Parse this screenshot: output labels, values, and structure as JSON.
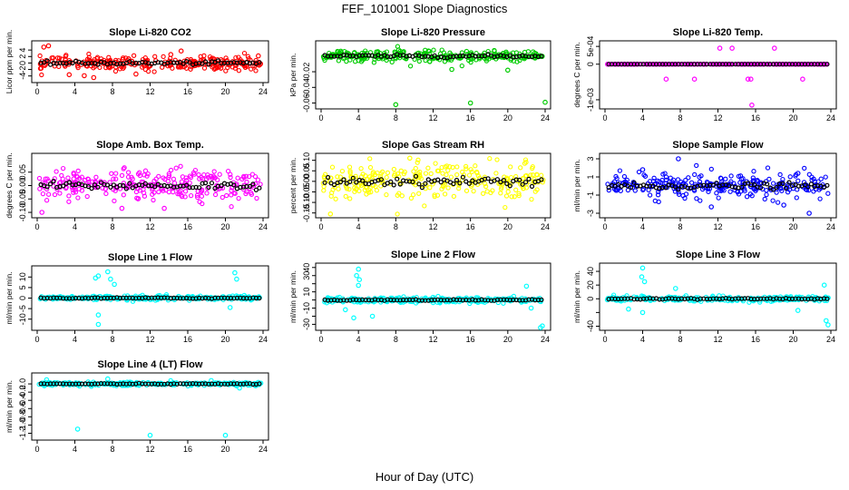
{
  "figure": {
    "title": "FEF_101001  Slope Diagnostics",
    "xlabel": "Hour of Day (UTC)"
  },
  "chart_data": [
    {
      "type": "scatter",
      "title": "Slope Li-820 CO2",
      "ylabel": "Licor ppm per min.",
      "xlim": [
        0,
        24
      ],
      "ylim": [
        -5.2,
        6.0
      ],
      "xticks": [
        0,
        4,
        8,
        12,
        16,
        20,
        24
      ],
      "yticks": [
        -4,
        -2,
        0,
        2,
        4
      ],
      "ytick_labels": [
        "-4",
        "-2",
        "0",
        "2",
        "4"
      ],
      "color": "#ff0000",
      "spread": 1.4,
      "outliers": [
        [
          1.2,
          5.3
        ],
        [
          0.7,
          4.9
        ],
        [
          6,
          -4.5
        ],
        [
          5,
          -3.9
        ],
        [
          15.3,
          3.7
        ],
        [
          14.2,
          2.6
        ],
        [
          23.5,
          2.2
        ],
        [
          10.5,
          -3.4
        ],
        [
          3.4,
          -3.6
        ]
      ]
    },
    {
      "type": "scatter",
      "title": "Slope Li-820 Pressure",
      "ylabel": "kPa per min.",
      "xlim": [
        0,
        24
      ],
      "ylim": [
        -0.064,
        0.016
      ],
      "xticks": [
        0,
        4,
        8,
        12,
        16,
        20,
        24
      ],
      "yticks": [
        -0.06,
        -0.04,
        -0.02
      ],
      "ytick_labels": [
        "-0.06",
        "-0.04",
        "-0.02"
      ],
      "color": "#00cc00",
      "spread": 0.005,
      "outliers": [
        [
          8,
          -0.062
        ],
        [
          16,
          -0.06
        ],
        [
          24,
          -0.059
        ],
        [
          20,
          -0.018
        ],
        [
          14,
          -0.017
        ]
      ]
    },
    {
      "type": "scatter",
      "title": "Slope Li-820 Temp.",
      "ylabel": "degrees C per min.",
      "xlim": [
        0,
        24
      ],
      "ylim": [
        -0.00118,
        0.00058
      ],
      "xticks": [
        0,
        4,
        8,
        12,
        16,
        20,
        24
      ],
      "yticks": [
        -0.001,
        0,
        0.0005
      ],
      "ytick_labels": [
        "-1e-03",
        "0",
        "5e-04"
      ],
      "color": "#ff00ff",
      "spread": 0,
      "outliers": [
        [
          12.2,
          0.00045
        ],
        [
          13.5,
          0.00045
        ],
        [
          18,
          0.00045
        ],
        [
          6.5,
          -0.00042
        ],
        [
          9.5,
          -0.00042
        ],
        [
          15.2,
          -0.00042
        ],
        [
          15.5,
          -0.00042
        ],
        [
          21,
          -0.00042
        ],
        [
          15.6,
          -0.00115
        ]
      ]
    },
    {
      "type": "scatter",
      "title": "Slope Amb. Box Temp.",
      "ylabel": "degrees C per min.",
      "xlim": [
        0,
        24
      ],
      "ylim": [
        -0.11,
        0.11
      ],
      "xticks": [
        0,
        4,
        8,
        12,
        16,
        20,
        24
      ],
      "yticks": [
        -0.1,
        -0.05,
        0,
        0.05
      ],
      "ytick_labels": [
        "-0.10",
        "-0.05",
        "0.00",
        "0.05"
      ],
      "color": "#ff00ff",
      "spread": 0.04,
      "outliers": [
        [
          0.5,
          -0.1
        ],
        [
          9,
          -0.085
        ],
        [
          13.5,
          -0.085
        ]
      ]
    },
    {
      "type": "scatter",
      "title": "Slope Gas Stream RH",
      "ylabel": "percent per min.",
      "xlim": [
        0,
        24
      ],
      "ylim": [
        -0.16,
        0.12
      ],
      "xticks": [
        0,
        4,
        8,
        12,
        16,
        20,
        24
      ],
      "yticks": [
        -0.15,
        -0.1,
        -0.05,
        0,
        0.05,
        0.1
      ],
      "ytick_labels": [
        "-0.15",
        "-0.10",
        "-0.05",
        "0.00",
        "0.05",
        "0.10"
      ],
      "color": "#ffff00",
      "spread": 0.055,
      "outliers": [
        [
          1,
          -0.155
        ],
        [
          9.5,
          0.11
        ]
      ]
    },
    {
      "type": "scatter",
      "title": "Slope Sample Flow",
      "ylabel": "ml/min per min.",
      "xlim": [
        0,
        24
      ],
      "ylim": [
        -3.2,
        3.3
      ],
      "xticks": [
        0,
        4,
        8,
        12,
        16,
        20,
        24
      ],
      "yticks": [
        -3,
        -1,
        1,
        3
      ],
      "ytick_labels": [
        "-3",
        "-1",
        "1",
        "3"
      ],
      "color": "#0000ff",
      "spread": 0.9,
      "outliers": [
        [
          7.8,
          3.0
        ],
        [
          4,
          1.8
        ],
        [
          20.5,
          1.4
        ],
        [
          11.3,
          -2.3
        ],
        [
          19,
          -2.1
        ],
        [
          21.7,
          -3.0
        ]
      ]
    },
    {
      "type": "scatter",
      "title": "Slope Line 1 Flow",
      "ylabel": "ml/min per min.",
      "xlim": [
        0,
        24
      ],
      "ylim": [
        -14,
        14
      ],
      "xticks": [
        0,
        4,
        8,
        12,
        16,
        20,
        24
      ],
      "yticks": [
        -10,
        -5,
        0,
        5,
        10
      ],
      "ytick_labels": [
        "-10",
        "-5",
        "0",
        "5",
        "10"
      ],
      "color": "#00ffff",
      "spread": 0.7,
      "outliers": [
        [
          7.5,
          12.5
        ],
        [
          6.5,
          10.5
        ],
        [
          6.2,
          9.5
        ],
        [
          7.8,
          9
        ],
        [
          8.2,
          6.5
        ],
        [
          6.5,
          -12.5
        ],
        [
          6.5,
          -8
        ],
        [
          21,
          12
        ],
        [
          21.2,
          9
        ],
        [
          20.5,
          -4.5
        ]
      ]
    },
    {
      "type": "scatter",
      "title": "Slope Line 2 Flow",
      "ylabel": "ml/min per min.",
      "xlim": [
        0,
        24
      ],
      "ylim": [
        -34,
        42
      ],
      "xticks": [
        0,
        4,
        8,
        12,
        16,
        20,
        24
      ],
      "yticks": [
        -30,
        -20,
        -10,
        0,
        10,
        20,
        30,
        40
      ],
      "ytick_labels": [
        "-30",
        "",
        "-10",
        "",
        "10",
        "",
        "30",
        "40"
      ],
      "color": "#00ffff",
      "spread": 2.2,
      "outliers": [
        [
          4,
          38
        ],
        [
          3.8,
          30
        ],
        [
          4.1,
          25
        ],
        [
          4,
          18
        ],
        [
          3.5,
          -22
        ],
        [
          5.5,
          -20
        ],
        [
          2.6,
          -12
        ],
        [
          22,
          17
        ],
        [
          22.5,
          -10
        ],
        [
          23.7,
          -32
        ],
        [
          23.5,
          -34
        ]
      ]
    },
    {
      "type": "scatter",
      "title": "Slope Line 3 Flow",
      "ylabel": "ml/min per min.",
      "xlim": [
        0,
        24
      ],
      "ylim": [
        -42,
        48
      ],
      "xticks": [
        0,
        4,
        8,
        12,
        16,
        20,
        24
      ],
      "yticks": [
        -40,
        -20,
        0,
        20,
        40
      ],
      "ytick_labels": [
        "-40",
        "",
        "0",
        "20",
        "40"
      ],
      "color": "#00ffff",
      "spread": 2.5,
      "outliers": [
        [
          4,
          45
        ],
        [
          3.9,
          32
        ],
        [
          4.2,
          25
        ],
        [
          4,
          -20
        ],
        [
          2.5,
          -15
        ],
        [
          7.5,
          15
        ],
        [
          23.3,
          20
        ],
        [
          23.5,
          -32
        ],
        [
          23.7,
          -38
        ],
        [
          20.5,
          -17
        ]
      ]
    },
    {
      "type": "scatter",
      "title": "Slope Line 4 (LT) Flow",
      "ylabel": "ml/min per min.",
      "xlim": [
        0,
        24
      ],
      "ylim": [
        -1.3,
        0.2
      ],
      "xticks": [
        0,
        4,
        8,
        12,
        16,
        20,
        24
      ],
      "yticks": [
        -1.2,
        -1.0,
        -0.8,
        -0.6,
        -0.4,
        -0.2,
        0
      ],
      "ytick_labels": [
        "-1.2",
        "-1.0",
        "-0.8",
        "-0.6",
        "-0.4",
        "-0.2",
        "0.0"
      ],
      "color": "#00ffff",
      "spread": 0.03,
      "outliers": [
        [
          4.3,
          -1.1
        ],
        [
          12,
          -1.25
        ],
        [
          20,
          -1.25
        ],
        [
          7.5,
          0.12
        ],
        [
          1,
          0.1
        ],
        [
          21.5,
          -0.1
        ],
        [
          18.5,
          0.08
        ]
      ]
    }
  ]
}
